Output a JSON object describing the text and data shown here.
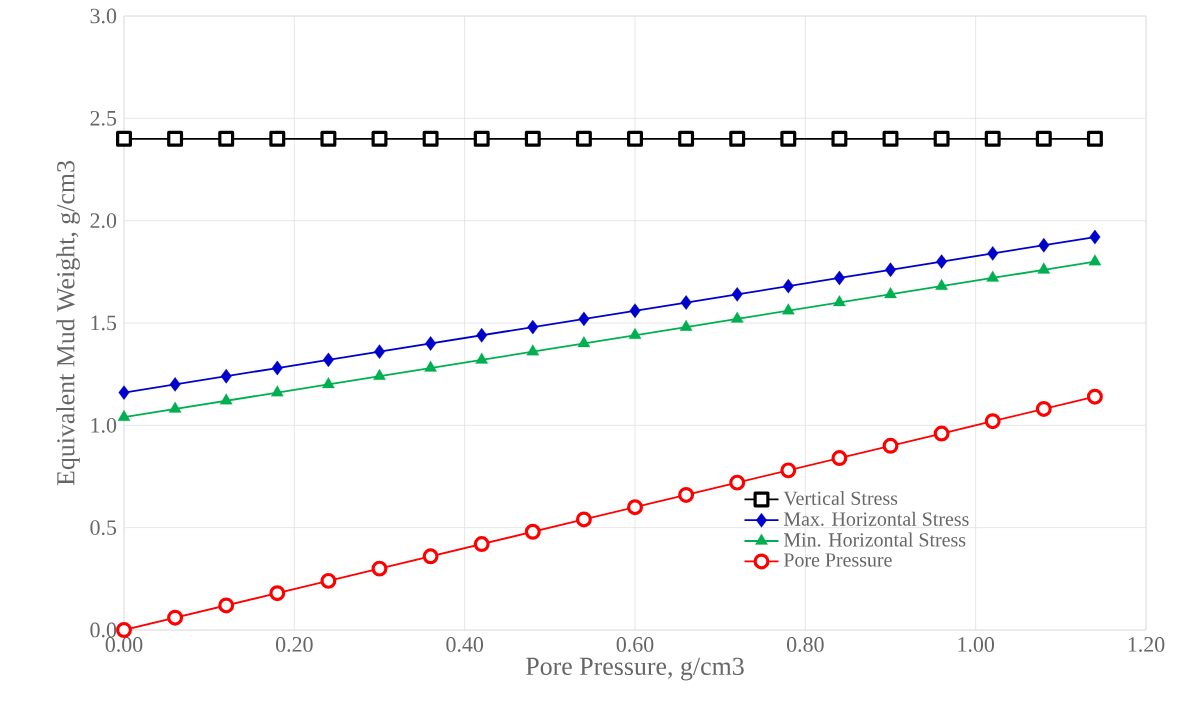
{
  "chart_data": {
    "type": "line",
    "xlabel": "Pore Pressure, g/cm3",
    "ylabel": "Equivalent Mud Weight, g/cm3",
    "x": [
      0,
      0.06,
      0.12,
      0.18,
      0.24,
      0.3,
      0.36,
      0.42,
      0.48,
      0.54,
      0.6,
      0.66,
      0.72,
      0.78,
      0.84,
      0.9,
      0.96,
      1.02,
      1.08,
      1.14
    ],
    "series": [
      {
        "name": "Vertical Stress",
        "color": "#000000",
        "marker": "square",
        "values": [
          2.4,
          2.4,
          2.4,
          2.4,
          2.4,
          2.4,
          2.4,
          2.4,
          2.4,
          2.4,
          2.4,
          2.4,
          2.4,
          2.4,
          2.4,
          2.4,
          2.4,
          2.4,
          2.4,
          2.4
        ]
      },
      {
        "name": "Max. Horizontal Stress",
        "color": "#0000cc",
        "marker": "diamond",
        "values": [
          1.16,
          1.2,
          1.24,
          1.28,
          1.32,
          1.36,
          1.4,
          1.44,
          1.48,
          1.52,
          1.56,
          1.6,
          1.64,
          1.68,
          1.72,
          1.76,
          1.8,
          1.84,
          1.88,
          1.92
        ]
      },
      {
        "name": "Min. Horizontal Stress",
        "color": "#00b050",
        "marker": "triangle",
        "values": [
          1.04,
          1.08,
          1.12,
          1.16,
          1.2,
          1.24,
          1.28,
          1.32,
          1.36,
          1.4,
          1.44,
          1.48,
          1.52,
          1.56,
          1.6,
          1.64,
          1.68,
          1.72,
          1.76,
          1.8
        ]
      },
      {
        "name": "Pore Pressure",
        "color": "#ff0000",
        "marker": "circle",
        "values": [
          0,
          0.06,
          0.12,
          0.18,
          0.24,
          0.3,
          0.36,
          0.42,
          0.48,
          0.54,
          0.6,
          0.66,
          0.72,
          0.78,
          0.84,
          0.9,
          0.96,
          1.02,
          1.08,
          1.14
        ]
      }
    ],
    "xlim": [
      0,
      1.2
    ],
    "xticks": [
      {
        "value": 0,
        "label": "0.00"
      },
      {
        "value": 0.2,
        "label": "0.20"
      },
      {
        "value": 0.4,
        "label": "0.40"
      },
      {
        "value": 0.6,
        "label": "0.60"
      },
      {
        "value": 0.8,
        "label": "0.80"
      },
      {
        "value": 1.0,
        "label": "1.00"
      },
      {
        "value": 1.2,
        "label": "1.20"
      }
    ],
    "ylim": [
      0,
      3
    ],
    "yticks": [
      {
        "value": 0,
        "label": "0.0"
      },
      {
        "value": 0.5,
        "label": "0.5"
      },
      {
        "value": 1.0,
        "label": "1.0"
      },
      {
        "value": 1.5,
        "label": "1.5"
      },
      {
        "value": 2.0,
        "label": "2.0"
      },
      {
        "value": 2.5,
        "label": "2.5"
      },
      {
        "value": 3.0,
        "label": "3.0"
      }
    ],
    "grid": true,
    "legend": "bottom right"
  }
}
